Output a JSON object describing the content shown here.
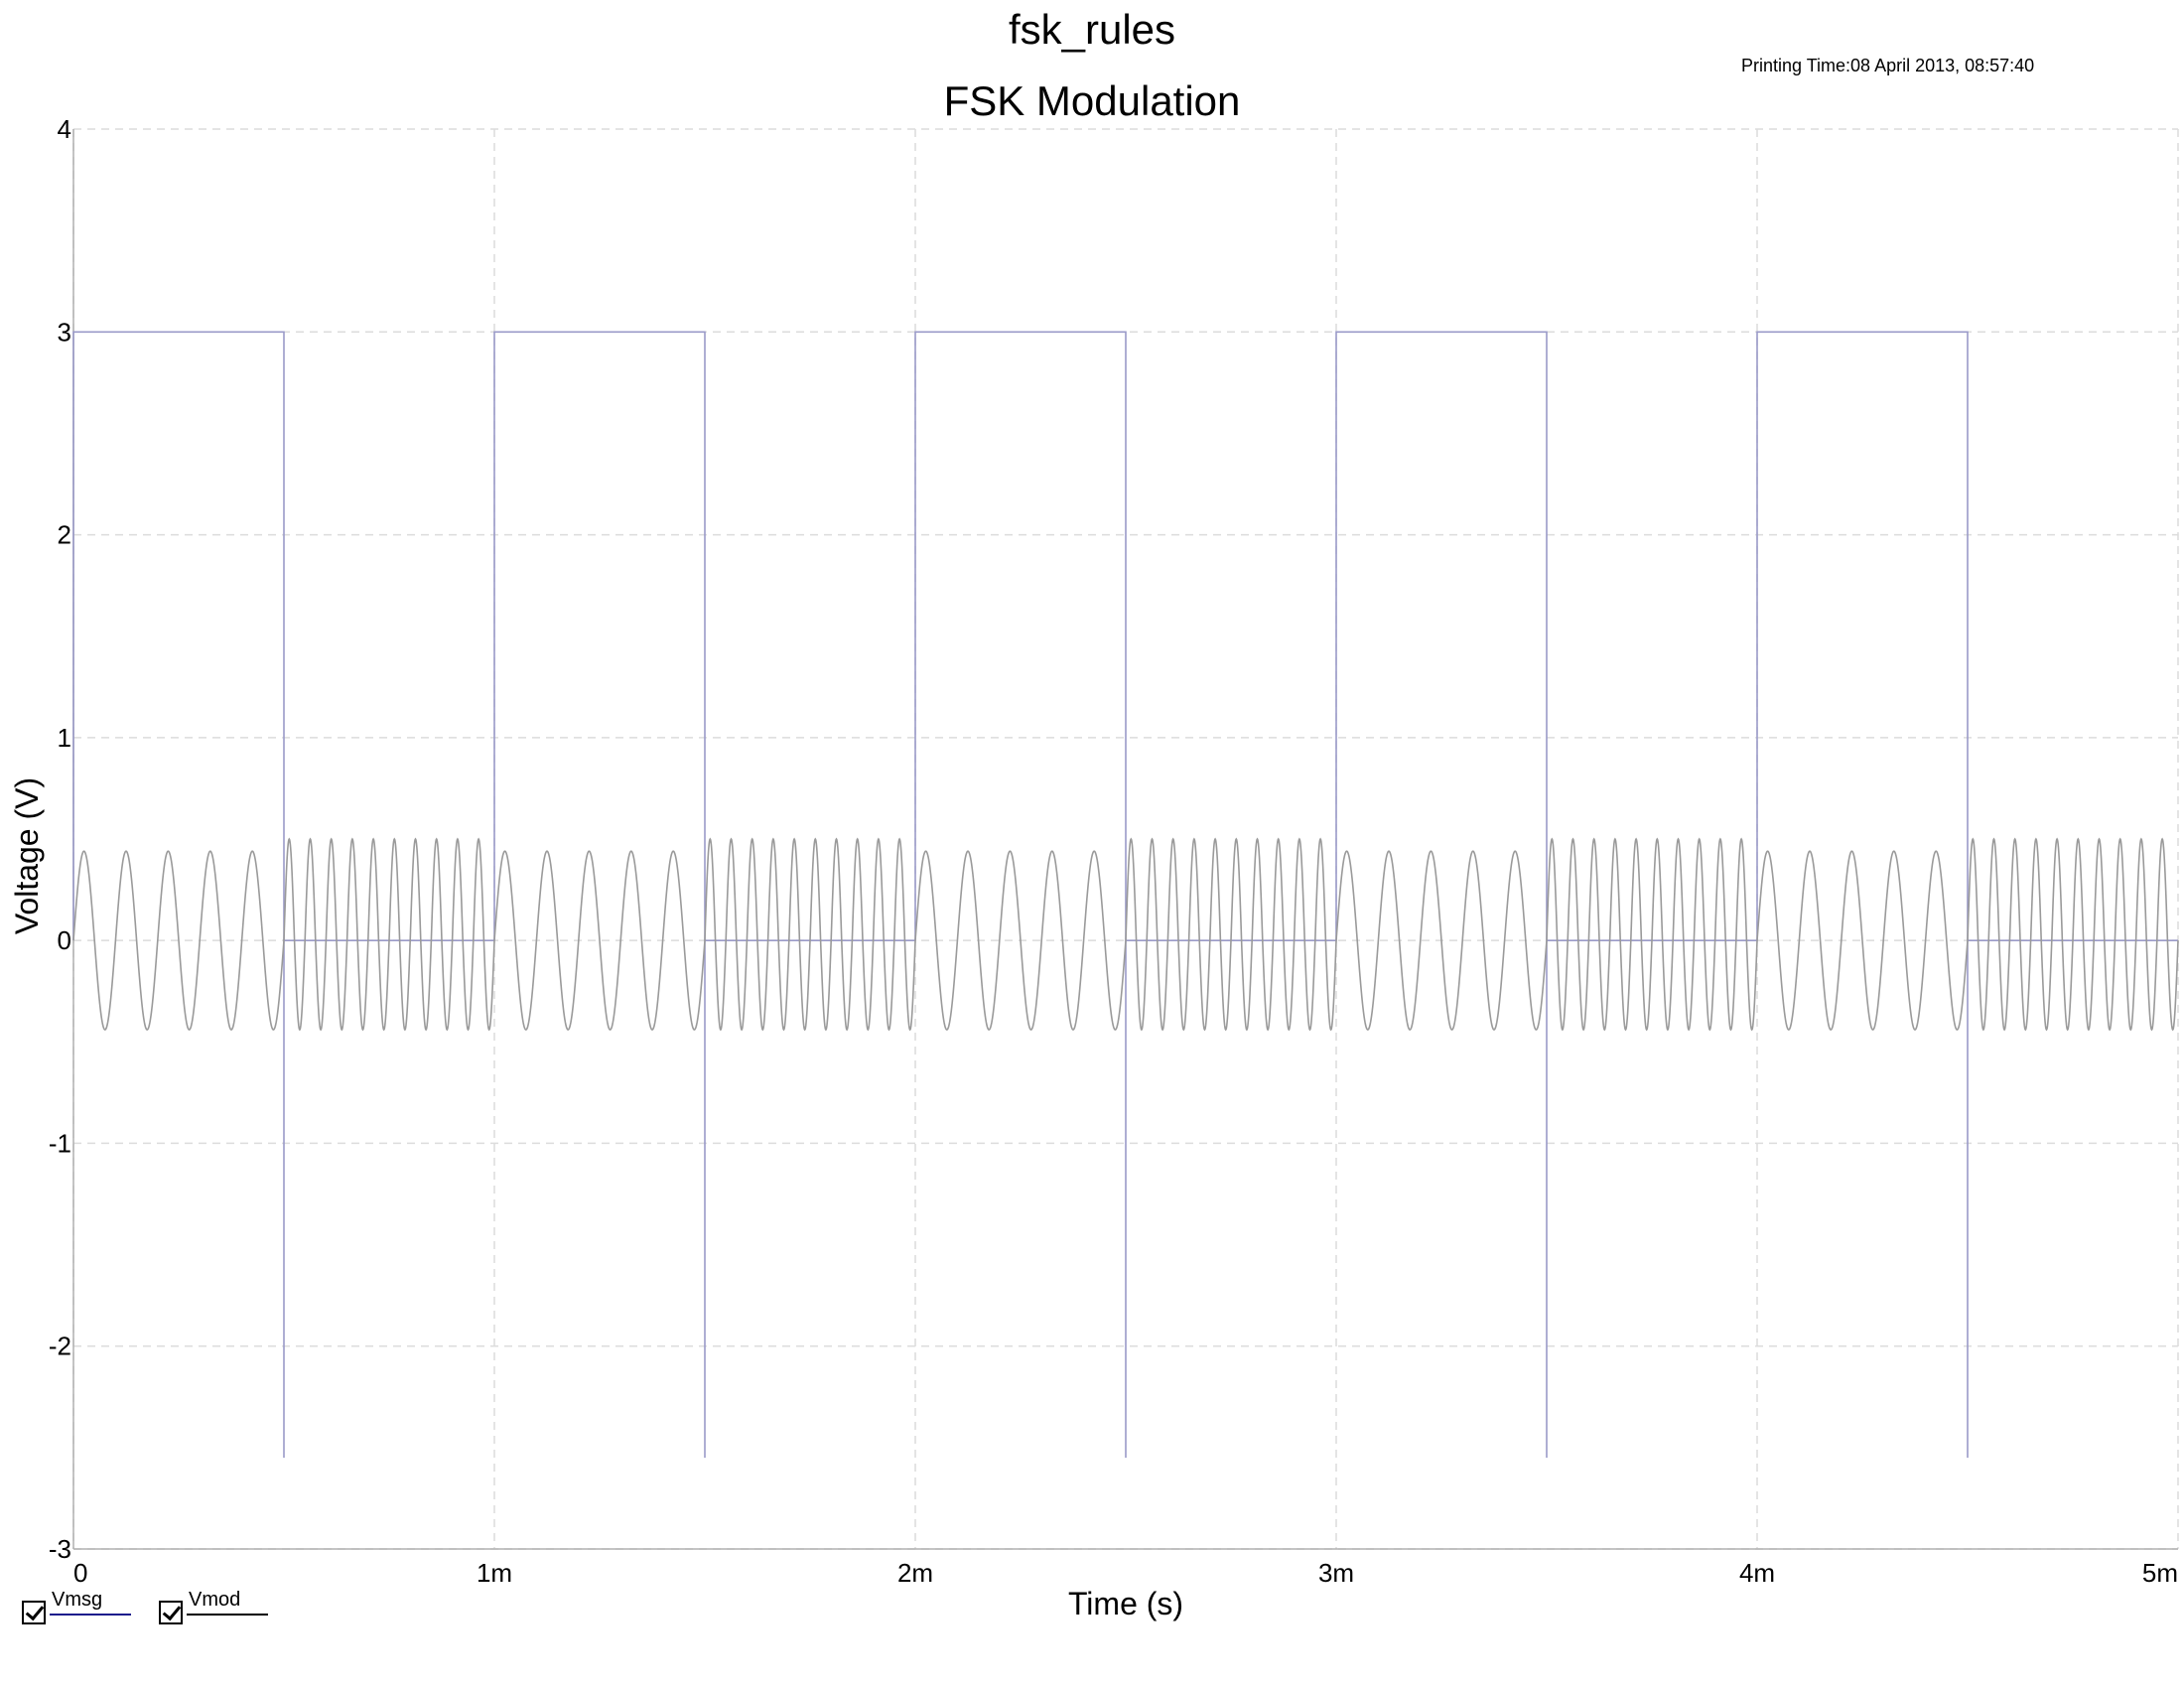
{
  "header": {
    "document_title": "fsk_rules",
    "printing_time": "Printing Time:08 April 2013, 08:57:40"
  },
  "legend": {
    "items": [
      {
        "label": "Vmsg",
        "checked": true,
        "color": "#1a1a8c"
      },
      {
        "label": "Vmod",
        "checked": true,
        "color": "#000000"
      }
    ]
  },
  "chart_data": {
    "type": "line",
    "title": "FSK Modulation",
    "xlabel": "Time (s)",
    "ylabel": "Voltage (V)",
    "xlim": [
      0,
      0.005
    ],
    "ylim": [
      -3,
      4
    ],
    "grid": true,
    "legend_position": "bottom-left",
    "x_ticks": [
      0,
      0.001,
      0.002,
      0.003,
      0.004,
      0.005
    ],
    "x_tick_labels": [
      "0",
      "1m",
      "2m",
      "3m",
      "4m",
      "5m"
    ],
    "y_ticks": [
      -3,
      -2,
      -1,
      0,
      1,
      2,
      3,
      4
    ],
    "y_tick_labels": [
      "-3",
      "-2",
      "-1",
      "0",
      "1",
      "2",
      "3",
      "4"
    ],
    "series": [
      {
        "name": "Vmsg",
        "color": "#9a9ac8",
        "kind": "square",
        "high": 3,
        "low": 0,
        "period": 0.001,
        "duty": 0.5,
        "edge_spike": -2.55,
        "x_end": 0.005
      },
      {
        "name": "Vmod",
        "color": "#9a9a9a",
        "kind": "fsk",
        "period": 0.001,
        "f_high_bit": 10000,
        "f_low_bit": 20000,
        "amp_high_bit": 0.44,
        "amp_low_bit": 0.44,
        "peak_low_bit": 0.5,
        "x_end": 0.005
      }
    ]
  }
}
